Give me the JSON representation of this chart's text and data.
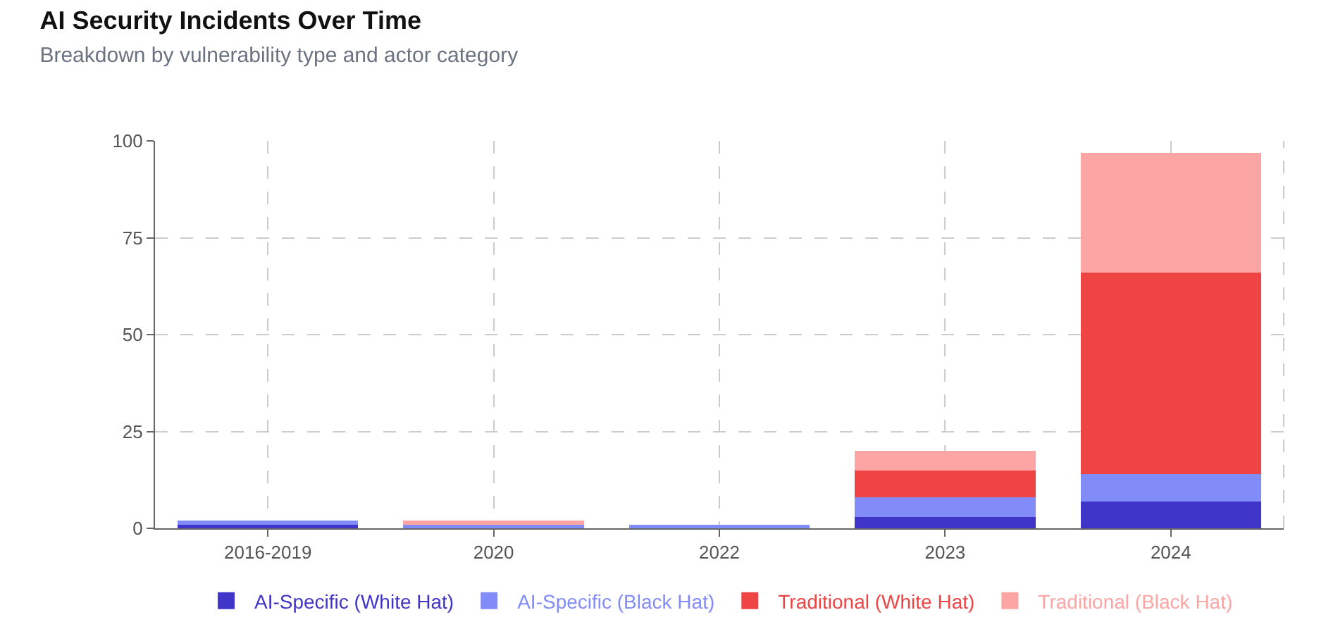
{
  "chart_data": {
    "type": "bar",
    "title": "AI Security Incidents Over Time",
    "subtitle": "Breakdown by vulnerability type and actor category",
    "categories": [
      "2016-2019",
      "2020",
      "2022",
      "2023",
      "2024"
    ],
    "stacked": true,
    "series": [
      {
        "name": "AI-Specific (White Hat)",
        "color": "#3f35c8",
        "values": [
          1,
          0,
          0,
          3,
          7
        ]
      },
      {
        "name": "AI-Specific (Black Hat)",
        "color": "#818cf8",
        "values": [
          1,
          1,
          1,
          5,
          7
        ]
      },
      {
        "name": "Traditional (White Hat)",
        "color": "#ef4444",
        "values": [
          0,
          0,
          0,
          7,
          52
        ]
      },
      {
        "name": "Traditional (Black Hat)",
        "color": "#fca5a5",
        "values": [
          0,
          1,
          0,
          5,
          31
        ]
      }
    ],
    "ylim": [
      0,
      100
    ],
    "yticks": [
      0,
      25,
      50,
      75,
      100
    ],
    "grid": true,
    "legend": "bottom"
  }
}
